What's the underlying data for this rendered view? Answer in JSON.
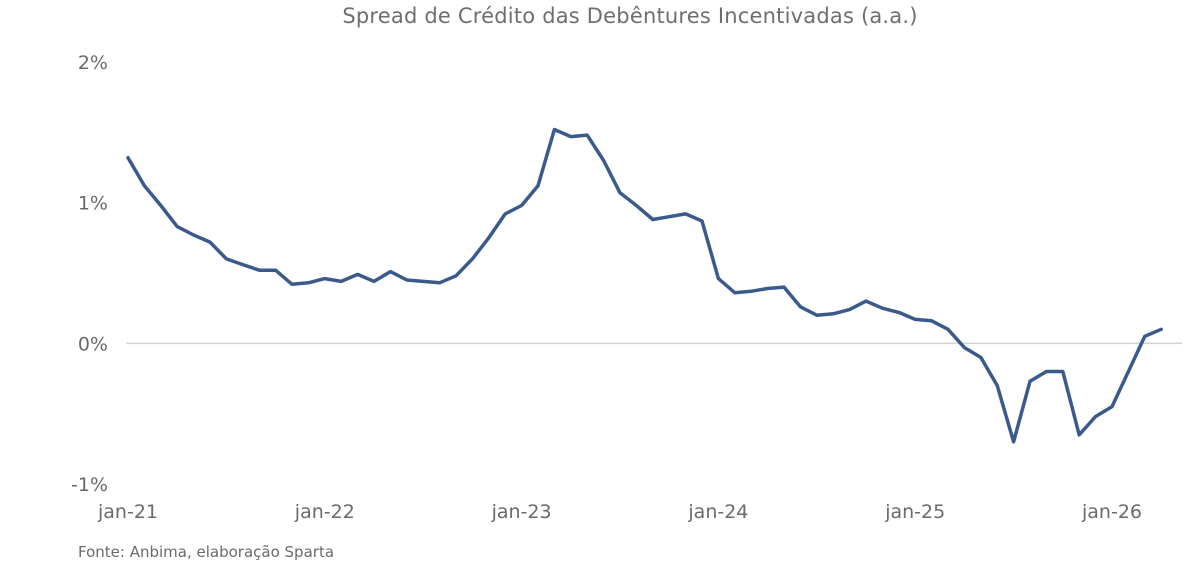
{
  "chart_data": {
    "type": "line",
    "title": "Spread de Crédito das Debêntures Incentivadas (a.a.)",
    "source": "Fonte: Anbima, elaboração Sparta",
    "xlabel": "",
    "ylabel": "",
    "x_tick_labels": [
      "jan-21",
      "jan-22",
      "jan-23",
      "jan-24",
      "jan-25",
      "jan-26"
    ],
    "y_tick_labels": [
      "2%",
      "1%",
      "0%",
      "-1%"
    ],
    "ylim": [
      -1,
      2
    ],
    "xlim": [
      "2021-01",
      "2026-04"
    ],
    "grid": false,
    "zero_line": true,
    "line_color": "#3a5a8c",
    "series": [
      {
        "name": "",
        "points": [
          [
            "2021-01",
            1.32
          ],
          [
            "2021-02",
            1.12
          ],
          [
            "2021-03",
            0.98
          ],
          [
            "2021-04",
            0.83
          ],
          [
            "2021-05",
            0.77
          ],
          [
            "2021-06",
            0.72
          ],
          [
            "2021-07",
            0.6
          ],
          [
            "2021-08",
            0.56
          ],
          [
            "2021-09",
            0.52
          ],
          [
            "2021-10",
            0.52
          ],
          [
            "2021-11",
            0.42
          ],
          [
            "2021-12",
            0.43
          ],
          [
            "2022-01",
            0.46
          ],
          [
            "2022-02",
            0.44
          ],
          [
            "2022-03",
            0.49
          ],
          [
            "2022-04",
            0.44
          ],
          [
            "2022-05",
            0.51
          ],
          [
            "2022-06",
            0.45
          ],
          [
            "2022-07",
            0.44
          ],
          [
            "2022-08",
            0.43
          ],
          [
            "2022-09",
            0.48
          ],
          [
            "2022-10",
            0.6
          ],
          [
            "2022-11",
            0.75
          ],
          [
            "2022-12",
            0.92
          ],
          [
            "2023-01",
            0.98
          ],
          [
            "2023-02",
            1.12
          ],
          [
            "2023-03",
            1.52
          ],
          [
            "2023-04",
            1.47
          ],
          [
            "2023-05",
            1.48
          ],
          [
            "2023-06",
            1.3
          ],
          [
            "2023-07",
            1.07
          ],
          [
            "2023-08",
            0.98
          ],
          [
            "2023-09",
            0.88
          ],
          [
            "2023-10",
            0.9
          ],
          [
            "2023-11",
            0.92
          ],
          [
            "2023-12",
            0.87
          ],
          [
            "2024-01",
            0.46
          ],
          [
            "2024-02",
            0.36
          ],
          [
            "2024-03",
            0.37
          ],
          [
            "2024-04",
            0.39
          ],
          [
            "2024-05",
            0.4
          ],
          [
            "2024-06",
            0.26
          ],
          [
            "2024-07",
            0.2
          ],
          [
            "2024-08",
            0.21
          ],
          [
            "2024-09",
            0.24
          ],
          [
            "2024-10",
            0.3
          ],
          [
            "2024-11",
            0.25
          ],
          [
            "2024-12",
            0.22
          ],
          [
            "2025-01",
            0.17
          ],
          [
            "2025-02",
            0.16
          ],
          [
            "2025-03",
            0.1
          ],
          [
            "2025-04",
            -0.03
          ],
          [
            "2025-05",
            -0.1
          ],
          [
            "2025-06",
            -0.3
          ],
          [
            "2025-07",
            -0.7
          ],
          [
            "2025-08",
            -0.27
          ],
          [
            "2025-09",
            -0.2
          ],
          [
            "2025-10",
            -0.2
          ],
          [
            "2025-11",
            -0.65
          ],
          [
            "2025-12",
            -0.52
          ],
          [
            "2026-01",
            -0.45
          ],
          [
            "2026-02",
            -0.2
          ],
          [
            "2026-03",
            0.05
          ],
          [
            "2026-04",
            0.1
          ]
        ]
      }
    ]
  }
}
